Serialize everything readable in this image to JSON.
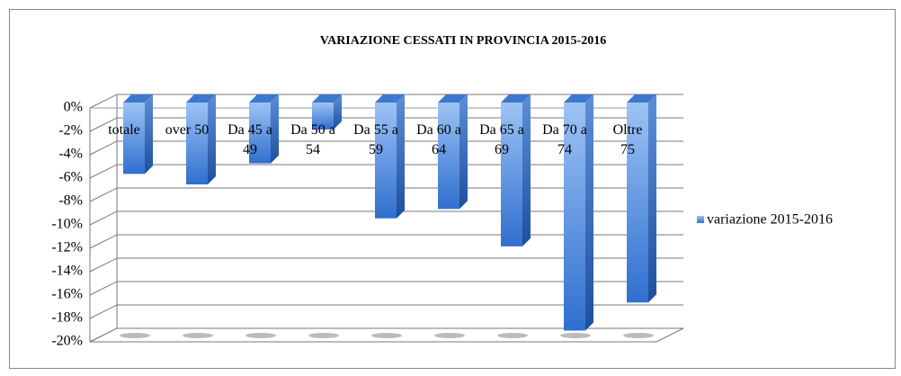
{
  "chart_data": {
    "type": "bar3d",
    "title": "VARIAZIONE CESSATI IN PROVINCIA  2015-2016",
    "categories": [
      "totale",
      "over 50",
      "Da 45 a 49",
      "Da 50 a 54",
      "Da 55 a 59",
      "Da 60 a 64",
      "Da 65 a 69",
      "Da 70 a 74",
      "Oltre 75"
    ],
    "series": [
      {
        "name": "variazione 2015-2016",
        "color": "#4f81bd",
        "values": [
          -6.1,
          -7.0,
          -5.2,
          -2.3,
          -9.9,
          -9.1,
          -12.3,
          -19.5,
          -17.1
        ]
      }
    ],
    "ylim": [
      -20,
      0
    ],
    "yticks": [
      {
        "value": 0,
        "label": "0%"
      },
      {
        "value": -2,
        "label": "-2%"
      },
      {
        "value": -4,
        "label": "-4%"
      },
      {
        "value": -6,
        "label": "-6%"
      },
      {
        "value": -8,
        "label": "-8%"
      },
      {
        "value": -10,
        "label": "-10%"
      },
      {
        "value": -12,
        "label": "-12%"
      },
      {
        "value": -14,
        "label": "-14%"
      },
      {
        "value": -16,
        "label": "-16%"
      },
      {
        "value": -18,
        "label": "-18%"
      },
      {
        "value": -20,
        "label": "-20%"
      }
    ],
    "grid": true,
    "legend": "right"
  }
}
